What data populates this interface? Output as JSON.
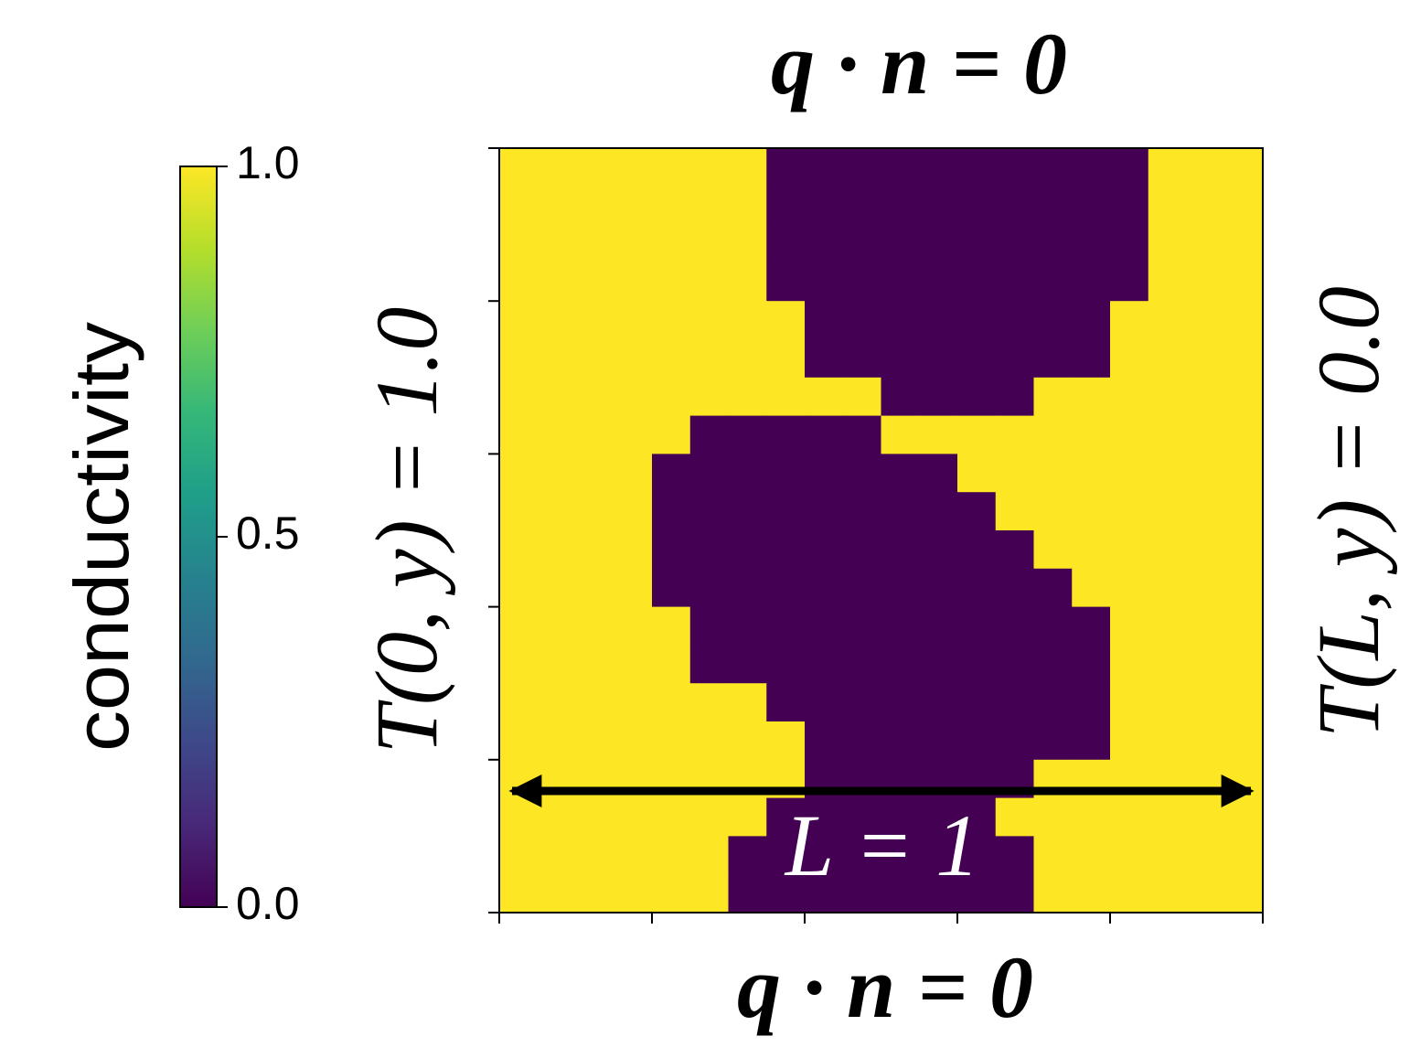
{
  "chart_data": {
    "type": "heatmap",
    "title": "q · n = 0",
    "xlabel": "q · n = 0",
    "left_label": "T(0, y) = 1.0",
    "right_label": "T(L, y) = 0.0",
    "annotation": "L = 1",
    "colorbar_label": "conductivity",
    "colormap": "viridis",
    "clim": [
      0,
      1
    ],
    "colorbar_ticks": [
      {
        "value": 0,
        "label": "0.0"
      },
      0.5,
      {
        "value": 1,
        "label": "1.0"
      }
    ],
    "values": [
      [
        1,
        1,
        1,
        1,
        1,
        1,
        1,
        0,
        0,
        0,
        0,
        0,
        0,
        0,
        0,
        0,
        0,
        1,
        1,
        1
      ],
      [
        1,
        1,
        1,
        1,
        1,
        1,
        1,
        0,
        0,
        0,
        0,
        0,
        0,
        0,
        0,
        0,
        0,
        1,
        1,
        1
      ],
      [
        1,
        1,
        1,
        1,
        1,
        1,
        1,
        0,
        0,
        0,
        0,
        0,
        0,
        0,
        0,
        0,
        0,
        1,
        1,
        1
      ],
      [
        1,
        1,
        1,
        1,
        1,
        1,
        1,
        0,
        0,
        0,
        0,
        0,
        0,
        0,
        0,
        0,
        0,
        1,
        1,
        1
      ],
      [
        1,
        1,
        1,
        1,
        1,
        1,
        1,
        1,
        0,
        0,
        0,
        0,
        0,
        0,
        0,
        0,
        1,
        1,
        1,
        1
      ],
      [
        1,
        1,
        1,
        1,
        1,
        1,
        1,
        1,
        0,
        0,
        0,
        0,
        0,
        0,
        0,
        0,
        1,
        1,
        1,
        1
      ],
      [
        1,
        1,
        1,
        1,
        1,
        1,
        1,
        1,
        1,
        1,
        0,
        0,
        0,
        0,
        1,
        1,
        1,
        1,
        1,
        1
      ],
      [
        1,
        1,
        1,
        1,
        1,
        0,
        0,
        0,
        0,
        0,
        1,
        1,
        1,
        1,
        1,
        1,
        1,
        1,
        1,
        1
      ],
      [
        1,
        1,
        1,
        1,
        0,
        0,
        0,
        0,
        0,
        0,
        0,
        0,
        1,
        1,
        1,
        1,
        1,
        1,
        1,
        1
      ],
      [
        1,
        1,
        1,
        1,
        0,
        0,
        0,
        0,
        0,
        0,
        0,
        0,
        0,
        1,
        1,
        1,
        1,
        1,
        1,
        1
      ],
      [
        1,
        1,
        1,
        1,
        0,
        0,
        0,
        0,
        0,
        0,
        0,
        0,
        0,
        0,
        1,
        1,
        1,
        1,
        1,
        1
      ],
      [
        1,
        1,
        1,
        1,
        0,
        0,
        0,
        0,
        0,
        0,
        0,
        0,
        0,
        0,
        0,
        1,
        1,
        1,
        1,
        1
      ],
      [
        1,
        1,
        1,
        1,
        1,
        0,
        0,
        0,
        0,
        0,
        0,
        0,
        0,
        0,
        0,
        0,
        1,
        1,
        1,
        1
      ],
      [
        1,
        1,
        1,
        1,
        1,
        0,
        0,
        0,
        0,
        0,
        0,
        0,
        0,
        0,
        0,
        0,
        1,
        1,
        1,
        1
      ],
      [
        1,
        1,
        1,
        1,
        1,
        1,
        1,
        0,
        0,
        0,
        0,
        0,
        0,
        0,
        0,
        0,
        1,
        1,
        1,
        1
      ],
      [
        1,
        1,
        1,
        1,
        1,
        1,
        1,
        1,
        0,
        0,
        0,
        0,
        0,
        0,
        0,
        0,
        1,
        1,
        1,
        1
      ],
      [
        1,
        1,
        1,
        1,
        1,
        1,
        1,
        1,
        0,
        0,
        0,
        0,
        0,
        0,
        1,
        1,
        1,
        1,
        1,
        1
      ],
      [
        1,
        1,
        1,
        1,
        1,
        1,
        1,
        0,
        0,
        0,
        0,
        0,
        0,
        1,
        1,
        1,
        1,
        1,
        1,
        1
      ],
      [
        1,
        1,
        1,
        1,
        1,
        1,
        0,
        0,
        0,
        0,
        0,
        0,
        0,
        0,
        1,
        1,
        1,
        1,
        1,
        1
      ],
      [
        1,
        1,
        1,
        1,
        1,
        1,
        0,
        0,
        0,
        0,
        0,
        0,
        0,
        0,
        1,
        1,
        1,
        1,
        1,
        1
      ]
    ]
  }
}
